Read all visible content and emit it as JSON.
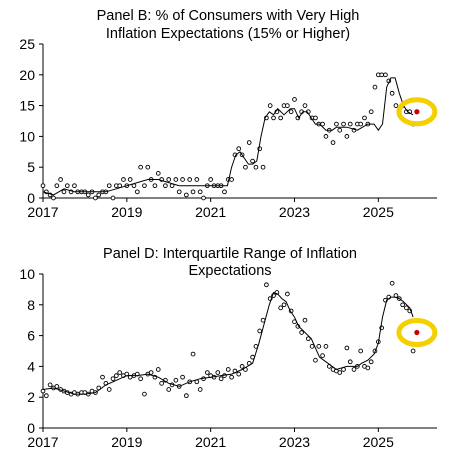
{
  "chart_data": [
    {
      "type": "scatter",
      "title_lines": [
        "Panel B: % of Consumers with Very High",
        "Inflation Expectations (15% or Higher)"
      ],
      "xlabel": "",
      "ylabel": "",
      "xlim": [
        2017,
        2026.4
      ],
      "ylim": [
        0,
        25
      ],
      "x_ticks": [
        2017,
        2019,
        2021,
        2023,
        2025
      ],
      "y_ticks": [
        0,
        5,
        10,
        15,
        20,
        25
      ],
      "grid": false,
      "series": [
        {
          "style": "points",
          "x": [
            2017.0,
            2017.08,
            2017.17,
            2017.25,
            2017.33,
            2017.42,
            2017.5,
            2017.58,
            2017.67,
            2017.75,
            2017.83,
            2017.92,
            2018.0,
            2018.08,
            2018.17,
            2018.25,
            2018.33,
            2018.42,
            2018.5,
            2018.58,
            2018.67,
            2018.75,
            2018.83,
            2018.92,
            2019.0,
            2019.08,
            2019.17,
            2019.25,
            2019.33,
            2019.42,
            2019.5,
            2019.58,
            2019.67,
            2019.75,
            2019.83,
            2019.92,
            2020.0,
            2020.08,
            2020.17,
            2020.25,
            2020.33,
            2020.42,
            2020.5,
            2020.58,
            2020.67,
            2020.75,
            2020.83,
            2020.92,
            2021.0,
            2021.08,
            2021.17,
            2021.25,
            2021.33,
            2021.42,
            2021.5,
            2021.58,
            2021.67,
            2021.75,
            2021.83,
            2021.92,
            2022.0,
            2022.08,
            2022.17,
            2022.25,
            2022.33,
            2022.42,
            2022.5,
            2022.58,
            2022.67,
            2022.75,
            2022.83,
            2022.92,
            2023.0,
            2023.08,
            2023.17,
            2023.25,
            2023.33,
            2023.42,
            2023.5,
            2023.58,
            2023.67,
            2023.75,
            2023.83,
            2023.92,
            2024.0,
            2024.08,
            2024.17,
            2024.25,
            2024.33,
            2024.42,
            2024.5,
            2024.58,
            2024.67,
            2024.75,
            2024.83,
            2024.92,
            2025.0,
            2025.08,
            2025.17,
            2025.25,
            2025.33,
            2025.42,
            2025.5,
            2025.58,
            2025.67,
            2025.75,
            2025.83
          ],
          "y": [
            2,
            1,
            0.5,
            0,
            2,
            3,
            1,
            2,
            1,
            2,
            1,
            1,
            1,
            0.5,
            1,
            0,
            0.5,
            1,
            1,
            2,
            0,
            2,
            2,
            3,
            2,
            3,
            2,
            1,
            5,
            2,
            5,
            3,
            2,
            4,
            3,
            2,
            3,
            2,
            3,
            1,
            3,
            0.5,
            3,
            1,
            3,
            1,
            0,
            2,
            3,
            2,
            2,
            2,
            1,
            3,
            3,
            7,
            8,
            7,
            5,
            9,
            6,
            5,
            8,
            5,
            13,
            15,
            13,
            14,
            13,
            15,
            15,
            14,
            16,
            13,
            14,
            15,
            14,
            13,
            13,
            12,
            12,
            10,
            11,
            9,
            12,
            11,
            12,
            10,
            12,
            11,
            12,
            12,
            13,
            12,
            14,
            18,
            20,
            20,
            20,
            19,
            17,
            15,
            14,
            15,
            14,
            14,
            12
          ]
        },
        {
          "style": "line",
          "x": [
            2017.0,
            2017.25,
            2017.5,
            2017.75,
            2018.0,
            2018.25,
            2018.5,
            2018.75,
            2019.0,
            2019.25,
            2019.5,
            2019.75,
            2020.0,
            2020.25,
            2020.5,
            2020.75,
            2021.0,
            2021.25,
            2021.4,
            2021.5,
            2021.6,
            2021.7,
            2021.8,
            2021.9,
            2022.0,
            2022.1,
            2022.2,
            2022.3,
            2022.4,
            2022.5,
            2022.6,
            2022.75,
            2022.9,
            2023.0,
            2023.1,
            2023.2,
            2023.3,
            2023.4,
            2023.5,
            2023.6,
            2023.75,
            2023.9,
            2024.0,
            2024.1,
            2024.25,
            2024.5,
            2024.75,
            2024.9,
            2025.0,
            2025.1,
            2025.2,
            2025.3,
            2025.4,
            2025.5,
            2025.6,
            2025.7,
            2025.83
          ],
          "y": [
            1,
            0.5,
            1.5,
            1,
            1,
            1,
            1,
            1.5,
            2,
            2.5,
            3,
            3,
            2.5,
            2,
            2,
            2,
            2,
            2,
            2,
            5,
            7,
            7.5,
            6.5,
            5.5,
            5.5,
            6,
            10,
            13,
            14,
            13.5,
            14.5,
            13.5,
            14.5,
            14.5,
            13,
            14,
            14,
            13,
            12,
            12,
            11,
            11,
            11.5,
            11.5,
            11.5,
            11,
            12,
            12,
            11,
            12,
            18,
            19.5,
            19.5,
            17,
            15,
            14,
            13.5
          ]
        }
      ],
      "highlight_point": {
        "x": 2025.92,
        "y": 14,
        "color": "#cc0000"
      },
      "highlight_ring": {
        "x": 2025.92,
        "y": 14,
        "color": "#f5d000"
      }
    },
    {
      "type": "scatter",
      "title_lines": [
        "Panel D: Interquartile Range of Inflation",
        "Expectations"
      ],
      "xlabel": "",
      "ylabel": "",
      "xlim": [
        2017,
        2026.4
      ],
      "ylim": [
        0,
        10
      ],
      "x_ticks": [
        2017,
        2019,
        2021,
        2023,
        2025
      ],
      "y_ticks": [
        0,
        2,
        4,
        6,
        8,
        10
      ],
      "grid": false,
      "series": [
        {
          "style": "points",
          "x": [
            2017.0,
            2017.08,
            2017.17,
            2017.25,
            2017.33,
            2017.42,
            2017.5,
            2017.58,
            2017.67,
            2017.75,
            2017.83,
            2017.92,
            2018.0,
            2018.08,
            2018.17,
            2018.25,
            2018.33,
            2018.42,
            2018.5,
            2018.58,
            2018.67,
            2018.75,
            2018.83,
            2018.92,
            2019.0,
            2019.08,
            2019.17,
            2019.25,
            2019.33,
            2019.42,
            2019.5,
            2019.58,
            2019.67,
            2019.75,
            2019.83,
            2019.92,
            2020.0,
            2020.08,
            2020.17,
            2020.25,
            2020.33,
            2020.42,
            2020.5,
            2020.58,
            2020.67,
            2020.75,
            2020.83,
            2020.92,
            2021.0,
            2021.08,
            2021.17,
            2021.25,
            2021.33,
            2021.42,
            2021.5,
            2021.58,
            2021.67,
            2021.75,
            2021.83,
            2021.92,
            2022.0,
            2022.08,
            2022.17,
            2022.25,
            2022.33,
            2022.42,
            2022.5,
            2022.58,
            2022.67,
            2022.75,
            2022.83,
            2022.92,
            2023.0,
            2023.08,
            2023.17,
            2023.25,
            2023.33,
            2023.42,
            2023.5,
            2023.58,
            2023.67,
            2023.75,
            2023.83,
            2023.92,
            2024.0,
            2024.08,
            2024.17,
            2024.25,
            2024.33,
            2024.42,
            2024.5,
            2024.58,
            2024.67,
            2024.75,
            2024.83,
            2024.92,
            2025.0,
            2025.08,
            2025.17,
            2025.25,
            2025.33,
            2025.42,
            2025.5,
            2025.58,
            2025.67,
            2025.75,
            2025.83
          ],
          "y": [
            2.4,
            2.1,
            2.8,
            2.6,
            2.7,
            2.5,
            2.4,
            2.3,
            2.2,
            2.3,
            2.2,
            2.3,
            2.3,
            2.2,
            2.4,
            2.3,
            2.6,
            3.3,
            2.9,
            2.5,
            3.2,
            3.4,
            3.6,
            3.4,
            3.5,
            3.3,
            3.4,
            3.5,
            3.2,
            2.2,
            3.5,
            3.6,
            3.3,
            3.8,
            2.9,
            3.1,
            2.5,
            2.8,
            3.1,
            2.7,
            3.3,
            2.1,
            3.0,
            4.8,
            3.0,
            2.5,
            3.2,
            3.6,
            3.4,
            3.3,
            3.6,
            3.2,
            3.4,
            3.8,
            3.3,
            3.7,
            3.5,
            4.0,
            3.8,
            4.2,
            4.6,
            5.3,
            6.3,
            7.0,
            9.3,
            8.4,
            8.6,
            8.8,
            7.8,
            8.0,
            8.7,
            7.6,
            6.9,
            6.6,
            6.2,
            7.0,
            5.8,
            5.3,
            4.4,
            5.3,
            4.7,
            5.3,
            4.0,
            3.8,
            3.7,
            3.6,
            3.8,
            5.2,
            4.3,
            3.8,
            4.0,
            5.0,
            4.0,
            3.9,
            4.3,
            5.0,
            5.6,
            6.5,
            8.3,
            8.5,
            9.4,
            8.6,
            8.4,
            8.0,
            7.8,
            7.6,
            5.0
          ]
        },
        {
          "style": "line",
          "x": [
            2017.0,
            2017.25,
            2017.5,
            2017.75,
            2018.0,
            2018.25,
            2018.5,
            2018.75,
            2019.0,
            2019.25,
            2019.5,
            2019.75,
            2020.0,
            2020.25,
            2020.5,
            2020.75,
            2021.0,
            2021.25,
            2021.5,
            2021.75,
            2022.0,
            2022.15,
            2022.3,
            2022.4,
            2022.5,
            2022.6,
            2022.7,
            2022.8,
            2022.9,
            2023.0,
            2023.1,
            2023.25,
            2023.4,
            2023.5,
            2023.6,
            2023.75,
            2023.9,
            2024.0,
            2024.25,
            2024.5,
            2024.6,
            2024.75,
            2024.9,
            2025.0,
            2025.1,
            2025.2,
            2025.3,
            2025.4,
            2025.5,
            2025.6,
            2025.75,
            2025.83
          ],
          "y": [
            2.5,
            2.6,
            2.4,
            2.2,
            2.2,
            2.3,
            2.8,
            3.1,
            3.4,
            3.4,
            3.5,
            3.3,
            2.9,
            2.7,
            3.0,
            3.2,
            3.3,
            3.4,
            3.5,
            3.8,
            4.2,
            5.5,
            7.0,
            8.0,
            8.8,
            8.7,
            8.4,
            8.2,
            7.6,
            7.2,
            6.6,
            6.2,
            5.8,
            5.2,
            4.6,
            4.3,
            4.0,
            3.8,
            4.0,
            4.0,
            4.2,
            4.4,
            4.8,
            5.5,
            7.2,
            8.3,
            8.5,
            8.5,
            8.4,
            8.2,
            7.8,
            7.2
          ]
        }
      ],
      "highlight_point": {
        "x": 2025.92,
        "y": 6.2,
        "color": "#cc0000"
      },
      "highlight_ring": {
        "x": 2025.92,
        "y": 6.2,
        "color": "#f5d000"
      }
    }
  ]
}
